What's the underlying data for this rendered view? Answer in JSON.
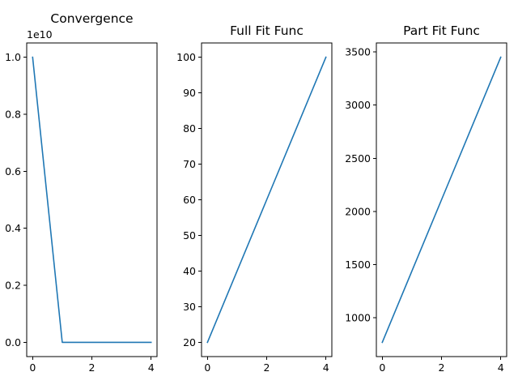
{
  "chart_data": [
    {
      "type": "line",
      "title": "Convergence",
      "xlabel": "",
      "ylabel": "",
      "x": [
        0,
        1,
        2,
        3,
        4
      ],
      "series": [
        {
          "values": [
            10000000000,
            0,
            0,
            0,
            0
          ]
        }
      ],
      "xlim": [
        -0.2,
        4.2
      ],
      "ylim": [
        -500000000,
        10500000000
      ],
      "xticks": [
        0,
        2,
        4
      ],
      "xtick_labels": [
        "0",
        "2",
        "4"
      ],
      "yticks": [
        0,
        2000000000,
        4000000000,
        6000000000,
        8000000000,
        10000000000
      ],
      "ytick_labels": [
        "0.0",
        "0.2",
        "0.4",
        "0.6",
        "0.8",
        "1.0"
      ],
      "y_offset_label": "1e10",
      "grid": false,
      "color": "#1f77b4"
    },
    {
      "type": "line",
      "title": "Full Fit Func",
      "xlabel": "",
      "ylabel": "",
      "x": [
        0,
        1,
        2,
        3,
        4
      ],
      "series": [
        {
          "values": [
            20,
            40,
            60,
            80,
            100
          ]
        }
      ],
      "xlim": [
        -0.2,
        4.2
      ],
      "ylim": [
        16,
        104
      ],
      "xticks": [
        0,
        2,
        4
      ],
      "xtick_labels": [
        "0",
        "2",
        "4"
      ],
      "yticks": [
        20,
        30,
        40,
        50,
        60,
        70,
        80,
        90,
        100
      ],
      "ytick_labels": [
        "20",
        "30",
        "40",
        "50",
        "60",
        "70",
        "80",
        "90",
        "100"
      ],
      "grid": false,
      "color": "#1f77b4"
    },
    {
      "type": "line",
      "title": "Part Fit Func",
      "xlabel": "",
      "ylabel": "",
      "x": [
        0,
        1,
        2,
        3,
        4
      ],
      "series": [
        {
          "values": [
            770,
            1440,
            2110,
            2780,
            3450
          ]
        }
      ],
      "xlim": [
        -0.2,
        4.2
      ],
      "ylim": [
        636,
        3584
      ],
      "xticks": [
        0,
        2,
        4
      ],
      "xtick_labels": [
        "0",
        "2",
        "4"
      ],
      "yticks": [
        1000,
        1500,
        2000,
        2500,
        3000,
        3500
      ],
      "ytick_labels": [
        "1000",
        "1500",
        "2000",
        "2500",
        "3000",
        "3500"
      ],
      "grid": false,
      "color": "#1f77b4"
    }
  ]
}
